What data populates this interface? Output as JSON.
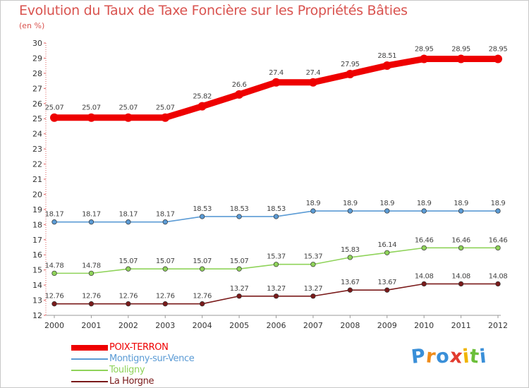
{
  "header": {
    "title": "Evolution du Taux de Taxe Foncière sur les Propriétés Bâties",
    "subtitle": "(en %)"
  },
  "chart_data": {
    "type": "line",
    "title": "Evolution du Taux de Taxe Foncière sur les Propriétés Bâties",
    "ylabel": "(en %)",
    "xlabel": "",
    "ylim": [
      12,
      30
    ],
    "grid": false,
    "categories": [
      "2000",
      "2001",
      "2002",
      "2003",
      "2004",
      "2005",
      "2006",
      "2007",
      "2008",
      "2009",
      "2010",
      "2011",
      "2012"
    ],
    "y_ticks": [
      "12",
      "13",
      "14",
      "15",
      "16",
      "17",
      "18",
      "19",
      "20",
      "21",
      "22",
      "23",
      "24",
      "25",
      "26",
      "27",
      "28",
      "29",
      "30"
    ],
    "series": [
      {
        "name": "POIX-TERRON",
        "color": "#ee0000",
        "values": [
          25.07,
          25.07,
          25.07,
          25.07,
          25.82,
          26.6,
          27.4,
          27.4,
          27.95,
          28.51,
          28.95,
          28.95,
          28.95
        ],
        "labels": [
          "25.07",
          "25.07",
          "25.07",
          "25.07",
          "25.82",
          "26.6",
          "27.4",
          "27.4",
          "27.95",
          "28.51",
          "28.95",
          "28.95",
          "28.95"
        ]
      },
      {
        "name": "Montigny-sur-Vence",
        "color": "#5b9bd5",
        "values": [
          18.17,
          18.17,
          18.17,
          18.17,
          18.53,
          18.53,
          18.53,
          18.9,
          18.9,
          18.9,
          18.9,
          18.9,
          18.9
        ],
        "labels": [
          "18.17",
          "18.17",
          "18.17",
          "18.17",
          "18.53",
          "18.53",
          "18.53",
          "18.9",
          "18.9",
          "18.9",
          "18.9",
          "18.9",
          "18.9"
        ]
      },
      {
        "name": "Touligny",
        "color": "#8fd35a",
        "values": [
          14.78,
          14.78,
          15.07,
          15.07,
          15.07,
          15.07,
          15.37,
          15.37,
          15.83,
          16.14,
          16.46,
          16.46,
          16.46
        ],
        "labels": [
          "14.78",
          "14.78",
          "15.07",
          "15.07",
          "15.07",
          "15.07",
          "15.37",
          "15.37",
          "15.83",
          "16.14",
          "16.46",
          "16.46",
          "16.46"
        ]
      },
      {
        "name": "La Horgne",
        "color": "#7a1a1a",
        "values": [
          12.76,
          12.76,
          12.76,
          12.76,
          12.76,
          13.27,
          13.27,
          13.27,
          13.67,
          13.67,
          14.08,
          14.08,
          14.08
        ],
        "labels": [
          "12.76",
          "12.76",
          "12.76",
          "12.76",
          "12.76",
          "13.27",
          "13.27",
          "13.27",
          "13.67",
          "13.67",
          "14.08",
          "14.08",
          "14.08"
        ]
      }
    ],
    "legend_position": "bottom-left"
  },
  "legend": {
    "items": [
      {
        "label": "POIX-TERRON",
        "color": "#ee0000"
      },
      {
        "label": "Montigny-sur-Vence",
        "color": "#5b9bd5"
      },
      {
        "label": "Touligny",
        "color": "#8fd35a"
      },
      {
        "label": "La Horgne",
        "color": "#7a1a1a"
      }
    ]
  },
  "logo": {
    "letters": [
      "P",
      "r",
      "o",
      "x",
      "i",
      "t",
      "i"
    ],
    "colors": [
      "#3a8fd8",
      "#f08c1a",
      "#3a8fd8",
      "#e23b2e",
      "#f0b400",
      "#6cbf3a",
      "#3a8fd8"
    ]
  }
}
